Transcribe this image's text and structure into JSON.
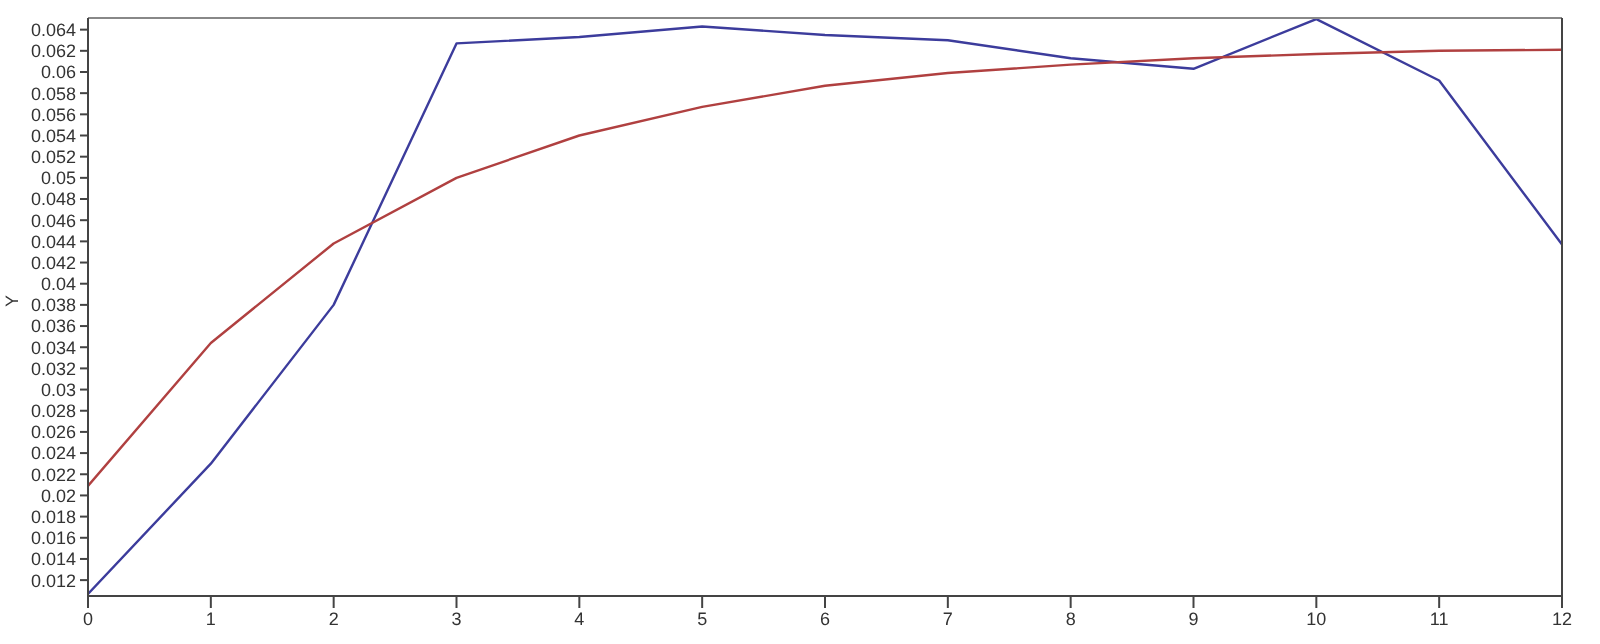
{
  "chart_data": {
    "type": "line",
    "ylabel": "Y",
    "x": [
      0,
      1,
      2,
      3,
      4,
      5,
      6,
      7,
      8,
      9,
      10,
      11,
      12
    ],
    "series": [
      {
        "color": "#3c3c9c",
        "values": [
          0.0107,
          0.023,
          0.038,
          0.0627,
          0.0633,
          0.0643,
          0.0635,
          0.063,
          0.0613,
          0.0603,
          0.065,
          0.0592,
          0.0437
        ]
      },
      {
        "color": "#b04040",
        "values": [
          0.0209,
          0.0344,
          0.0438,
          0.05,
          0.054,
          0.0567,
          0.0587,
          0.0599,
          0.0607,
          0.0613,
          0.0617,
          0.062,
          0.0621
        ]
      }
    ],
    "xlim": [
      0,
      12
    ],
    "xticks": [
      0,
      1,
      2,
      3,
      4,
      5,
      6,
      7,
      8,
      9,
      10,
      11,
      12
    ],
    "ylim": [
      0.0105,
      0.0651
    ],
    "yticks": [
      0.012,
      0.014,
      0.016,
      0.018,
      0.02,
      0.022,
      0.024,
      0.026,
      0.028,
      0.03,
      0.032,
      0.034,
      0.036,
      0.038,
      0.04,
      0.042,
      0.044,
      0.046,
      0.048,
      0.05,
      0.052,
      0.054,
      0.056,
      0.058,
      0.06,
      0.062,
      0.064
    ],
    "grid": false,
    "legend": false,
    "marker": "none",
    "line_style": "solid"
  }
}
